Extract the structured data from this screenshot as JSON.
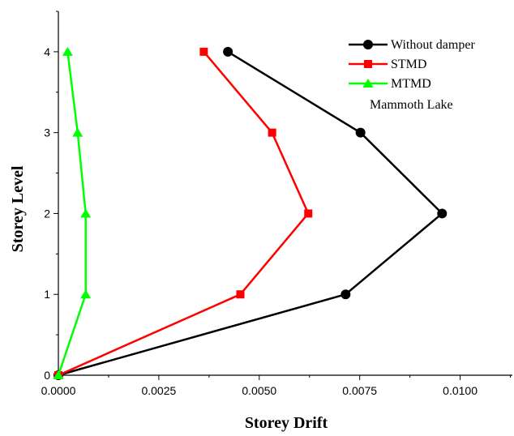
{
  "chart_data": {
    "type": "line",
    "title": "",
    "xlabel": "Storey Drift",
    "ylabel": "Storey Level",
    "xlim": [
      0,
      0.0113
    ],
    "ylim": [
      0,
      4.5
    ],
    "x_ticks": [
      "0.0000",
      "0.0025",
      "0.0050",
      "0.0075",
      "0.0100"
    ],
    "y_ticks": [
      "0",
      "1",
      "2",
      "3",
      "4"
    ],
    "grid": false,
    "legend_position": "top-right",
    "legend_note": "Mammoth Lake",
    "series": [
      {
        "name": "Without damper",
        "color": "#000000",
        "marker": "circle",
        "points": [
          [
            0,
            0
          ],
          [
            0.00715,
            1
          ],
          [
            0.00955,
            2
          ],
          [
            0.00752,
            3
          ],
          [
            0.00422,
            4
          ]
        ]
      },
      {
        "name": "STMD",
        "color": "#ff0000",
        "marker": "square",
        "points": [
          [
            0,
            0
          ],
          [
            0.00453,
            1
          ],
          [
            0.00622,
            2
          ],
          [
            0.00532,
            3
          ],
          [
            0.00362,
            4
          ]
        ]
      },
      {
        "name": "MTMD",
        "color": "#00ff00",
        "marker": "triangle",
        "points": [
          [
            0,
            0
          ],
          [
            0.00068,
            1
          ],
          [
            0.00068,
            2
          ],
          [
            0.00048,
            3
          ],
          [
            0.00023,
            4
          ]
        ]
      }
    ]
  }
}
